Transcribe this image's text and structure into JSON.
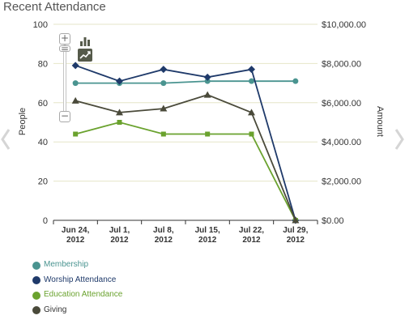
{
  "page": {
    "title": "Recent Attendance"
  },
  "chart_data": {
    "type": "line",
    "categories": [
      "Jun 24, 2012",
      "Jul 1, 2012",
      "Jul 8, 2012",
      "Jul 15, 2012",
      "Jul 22, 2012",
      "Jul 29, 2012"
    ],
    "category_lines": [
      [
        "Jun 24,",
        "2012"
      ],
      [
        "Jul 1,",
        "2012"
      ],
      [
        "Jul 8,",
        "2012"
      ],
      [
        "Jul 15,",
        "2012"
      ],
      [
        "Jul 22,",
        "2012"
      ],
      [
        "Jul 29,",
        "2012"
      ]
    ],
    "ylabel": "People",
    "y2label": "Amount",
    "ylim": [
      0,
      100
    ],
    "yticks": [
      "0",
      "20",
      "40",
      "60",
      "80",
      "100"
    ],
    "y2lim": [
      0,
      10000
    ],
    "y2ticks": [
      "$0.00",
      "$2,000.00",
      "$4,000.00",
      "$6,000.00",
      "$8,000.00",
      "$10,000.00"
    ],
    "grid": true,
    "legend_position": "bottom-left",
    "series": [
      {
        "name": "Membership",
        "axis": "left",
        "marker": "circle",
        "color": "#4a9490",
        "values": [
          70,
          70,
          70,
          71,
          71,
          71
        ]
      },
      {
        "name": "Worship Attendance",
        "axis": "left",
        "marker": "diamond",
        "color": "#1f3a6a",
        "values": [
          79,
          71,
          77,
          73,
          77,
          0
        ]
      },
      {
        "name": "Education Attendance",
        "axis": "left",
        "marker": "square",
        "color": "#6aa22e",
        "values": [
          44,
          50,
          44,
          44,
          44,
          0
        ]
      },
      {
        "name": "Giving",
        "axis": "right",
        "marker": "triangle",
        "color": "#4a4a3a",
        "values": [
          6100,
          5500,
          5700,
          6400,
          5500,
          0
        ]
      }
    ]
  },
  "controls": {
    "zoom_in_label": "+",
    "zoom_out_label": "−",
    "zoom_thumb_label": "="
  },
  "colors": {
    "grid": "#e6e6c8",
    "axis": "#333333",
    "text": "#333333",
    "nav_arrow": "#d5d5d5"
  }
}
